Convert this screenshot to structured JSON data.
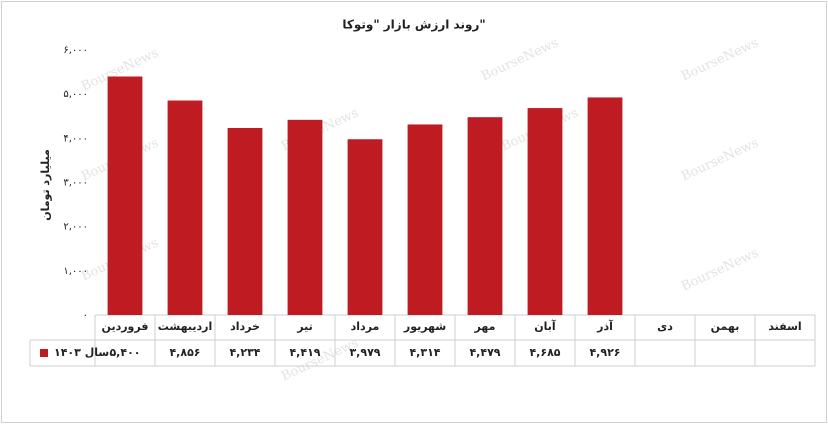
{
  "chart_data": {
    "type": "bar",
    "title": "روند  ارزش بازار \"وتوکا\"",
    "y_label": "میلیارد تومان",
    "watermark": "BourseNews",
    "categories": [
      "فروردین",
      "اردیبهشت",
      "خرداد",
      "تیر",
      "مرداد",
      "شهریور",
      "مهر",
      "آبان",
      "آذر",
      "دی",
      "بهمن",
      "اسفند"
    ],
    "series": [
      {
        "name": "سال ۱۴۰۳",
        "color": "#be1b23",
        "values": [
          5400,
          4856,
          4234,
          4419,
          3979,
          4314,
          4479,
          4685,
          4926,
          null,
          null,
          null
        ],
        "value_labels": [
          "۵,۴۰۰",
          "۴,۸۵۶",
          "۴,۲۳۴",
          "۴,۴۱۹",
          "۳,۹۷۹",
          "۴,۳۱۴",
          "۴,۴۷۹",
          "۴,۶۸۵",
          "۴,۹۲۶",
          null,
          null,
          null
        ]
      }
    ],
    "ylim": [
      0,
      6000
    ],
    "yticks": [
      {
        "value": 0,
        "label": "۰"
      },
      {
        "value": 1000,
        "label": "۱,۰۰۰"
      },
      {
        "value": 2000,
        "label": "۲,۰۰۰"
      },
      {
        "value": 3000,
        "label": "۳,۰۰۰"
      },
      {
        "value": 4000,
        "label": "۴,۰۰۰"
      },
      {
        "value": 5000,
        "label": "۵,۰۰۰"
      },
      {
        "value": 6000,
        "label": "۶,۰۰۰"
      }
    ],
    "grid": false
  }
}
